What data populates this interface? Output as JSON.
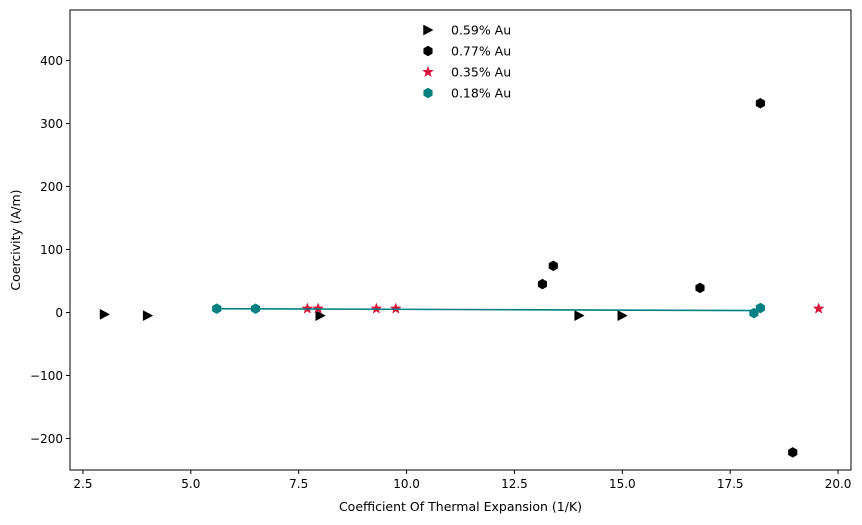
{
  "chart_data": {
    "type": "scatter",
    "title": "",
    "xlabel": "Coefficient Of Thermal Expansion (1/K)",
    "ylabel": "Coercivity (A/m)",
    "xlim": [
      2.2,
      20.3
    ],
    "ylim": [
      -250,
      480
    ],
    "xticks": [
      2.5,
      5.0,
      7.5,
      10.0,
      12.5,
      15.0,
      17.5,
      20.0
    ],
    "xtick_labels": [
      "2.5",
      "5.0",
      "7.5",
      "10.0",
      "12.5",
      "15.0",
      "17.5",
      "20.0"
    ],
    "yticks": [
      -200,
      -100,
      0,
      100,
      200,
      300,
      400
    ],
    "ytick_labels": [
      "−200",
      "−100",
      "0",
      "100",
      "200",
      "300",
      "400"
    ],
    "grid": false,
    "legend_position": "top-center",
    "series": [
      {
        "name": "0.59% Au",
        "marker": "triangle-right",
        "color": "#000000",
        "points": [
          {
            "x": 3.0,
            "y": -3
          },
          {
            "x": 4.0,
            "y": -5
          },
          {
            "x": 8.0,
            "y": -5
          },
          {
            "x": 14.0,
            "y": -5
          },
          {
            "x": 15.0,
            "y": -5
          }
        ]
      },
      {
        "name": "0.77% Au",
        "marker": "hexagon",
        "color": "#000000",
        "points": [
          {
            "x": 13.15,
            "y": 45
          },
          {
            "x": 13.4,
            "y": 74
          },
          {
            "x": 16.8,
            "y": 39
          },
          {
            "x": 18.2,
            "y": 332
          },
          {
            "x": 18.95,
            "y": -222
          }
        ]
      },
      {
        "name": "0.35% Au",
        "marker": "star",
        "color": "#dc143c",
        "points": [
          {
            "x": 7.7,
            "y": 6
          },
          {
            "x": 7.95,
            "y": 6
          },
          {
            "x": 9.3,
            "y": 6
          },
          {
            "x": 9.75,
            "y": 6
          },
          {
            "x": 19.55,
            "y": 6
          }
        ]
      },
      {
        "name": "0.18% Au",
        "marker": "hexagon",
        "color": "#008080",
        "points": [
          {
            "x": 5.6,
            "y": 6
          },
          {
            "x": 6.5,
            "y": 6
          },
          {
            "x": 18.05,
            "y": -1
          },
          {
            "x": 18.2,
            "y": 7
          }
        ],
        "trendline": {
          "x": [
            5.6,
            18.2
          ],
          "y": [
            6,
            3
          ]
        }
      }
    ]
  }
}
